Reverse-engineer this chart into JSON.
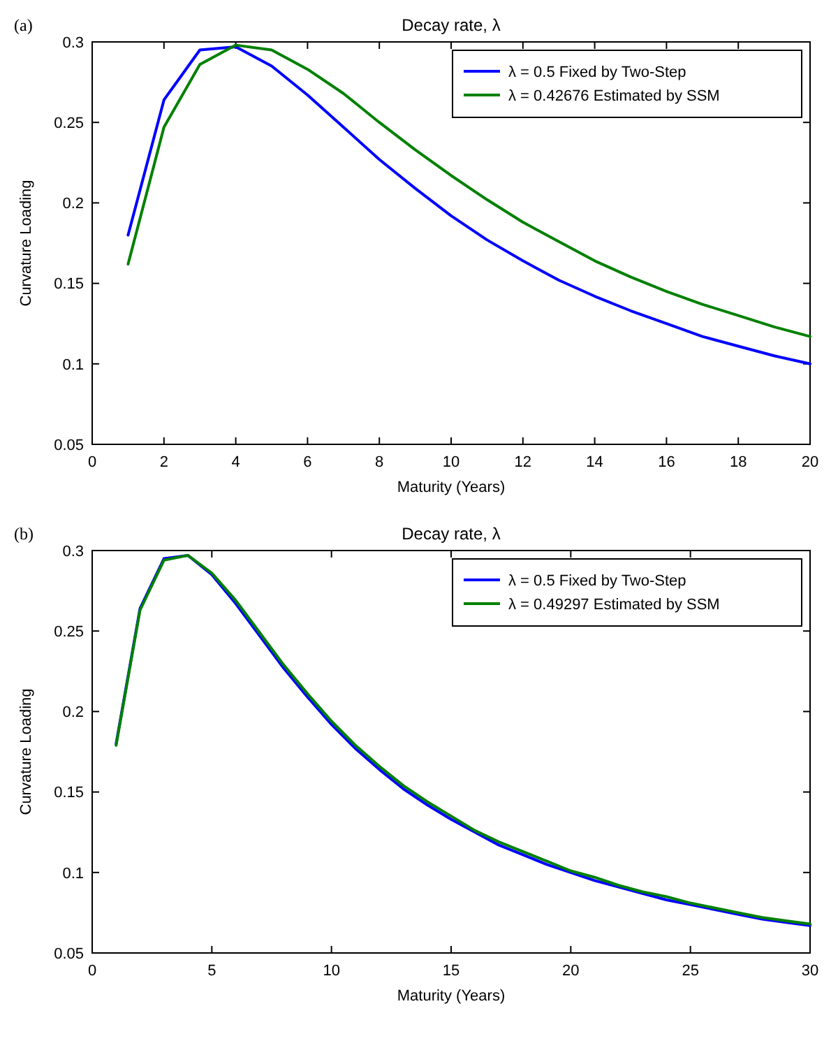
{
  "chart_data": [
    {
      "type": "line",
      "title": "Decay rate, λ",
      "xlabel": "Maturity (Years)",
      "ylabel": "Curvature Loading",
      "annotations": [
        "(a)"
      ],
      "x": [
        1,
        2,
        3,
        4,
        5,
        6,
        7,
        8,
        9,
        10,
        11,
        12,
        13,
        14,
        15,
        16,
        17,
        18,
        19,
        20
      ],
      "series": [
        {
          "name": "λ = 0.5 Fixed by Two-Step",
          "color": "#0000ff",
          "values": [
            0.18,
            0.264,
            0.295,
            0.297,
            0.285,
            0.267,
            0.247,
            0.227,
            0.209,
            0.192,
            0.177,
            0.164,
            0.152,
            0.142,
            0.133,
            0.125,
            0.117,
            0.111,
            0.105,
            0.1
          ]
        },
        {
          "name": "λ = 0.42676 Estimated by SSM",
          "color": "#008000",
          "values": [
            0.162,
            0.247,
            0.286,
            0.298,
            0.295,
            0.283,
            0.268,
            0.25,
            0.233,
            0.217,
            0.202,
            0.188,
            0.176,
            0.164,
            0.154,
            0.145,
            0.137,
            0.13,
            0.123,
            0.117
          ]
        }
      ],
      "xlim": [
        0,
        20
      ],
      "xticks": [
        0,
        2,
        4,
        6,
        8,
        10,
        12,
        14,
        16,
        18,
        20
      ],
      "ylim": [
        0.05,
        0.3
      ],
      "yticks": [
        0.05,
        0.1,
        0.15,
        0.2,
        0.25,
        0.3
      ],
      "legend": "top right",
      "grid": false,
      "line_style": "solid",
      "marker": "none"
    },
    {
      "type": "line",
      "title": "Decay rate, λ",
      "xlabel": "Maturity (Years)",
      "ylabel": "Curvature Loading",
      "annotations": [
        "(b)"
      ],
      "x": [
        1,
        2,
        3,
        4,
        5,
        6,
        7,
        8,
        9,
        10,
        11,
        12,
        13,
        14,
        15,
        16,
        17,
        18,
        19,
        20,
        21,
        22,
        23,
        24,
        25,
        26,
        27,
        28,
        29,
        30
      ],
      "series": [
        {
          "name": "λ = 0.5 Fixed by Two-Step",
          "color": "#0000ff",
          "values": [
            0.18,
            0.264,
            0.295,
            0.297,
            0.285,
            0.267,
            0.247,
            0.227,
            0.209,
            0.192,
            0.177,
            0.164,
            0.152,
            0.142,
            0.133,
            0.125,
            0.117,
            0.111,
            0.105,
            0.1,
            0.095,
            0.091,
            0.087,
            0.083,
            0.08,
            0.077,
            0.074,
            0.071,
            0.069,
            0.067
          ]
        },
        {
          "name": "λ = 0.49297 Estimated by SSM",
          "color": "#008000",
          "values": [
            0.179,
            0.263,
            0.294,
            0.297,
            0.286,
            0.269,
            0.249,
            0.229,
            0.211,
            0.194,
            0.179,
            0.166,
            0.154,
            0.144,
            0.135,
            0.126,
            0.119,
            0.113,
            0.107,
            0.101,
            0.097,
            0.092,
            0.088,
            0.085,
            0.081,
            0.078,
            0.075,
            0.072,
            0.07,
            0.068
          ]
        }
      ],
      "xlim": [
        0,
        30
      ],
      "xticks": [
        0,
        5,
        10,
        15,
        20,
        25,
        30
      ],
      "ylim": [
        0.05,
        0.3
      ],
      "yticks": [
        0.05,
        0.1,
        0.15,
        0.2,
        0.25,
        0.3
      ],
      "legend": "top right",
      "grid": false,
      "line_style": "solid",
      "marker": "none"
    }
  ]
}
